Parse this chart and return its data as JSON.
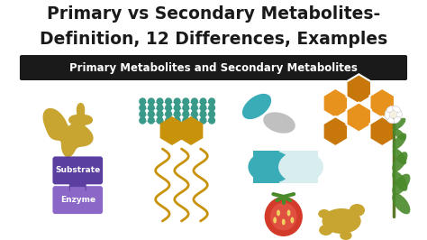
{
  "title_line1": "Primary vs Secondary Metabolites-",
  "title_line2": "Definition, 12 Differences, Examples",
  "subtitle": "Primary Metabolites and Secondary Metabolites",
  "bg_color": "#ffffff",
  "title_color": "#1a1a1a",
  "subtitle_bg": "#1a1a1a",
  "subtitle_fg": "#ffffff",
  "title_fontsize": 13.5,
  "subtitle_fontsize": 8.5,
  "fig_width": 4.74,
  "fig_height": 2.66,
  "dpi": 100,
  "blob_color": "#c8a430",
  "dot_color": "#3a9a8a",
  "pill_teal": "#3aacb8",
  "pill_gray": "#c0c0c0",
  "honey_color": "#e8921e",
  "puzzle_top": "#5b3fa0",
  "puzzle_bot": "#8b68c8",
  "wavy_color": "#c8920a",
  "capsule_teal": "#3aacb8",
  "capsule_white": "#d8eeee",
  "tomato_color": "#d43a2a",
  "ginger_color": "#c8a430",
  "plant_color": "#4a8a2a"
}
